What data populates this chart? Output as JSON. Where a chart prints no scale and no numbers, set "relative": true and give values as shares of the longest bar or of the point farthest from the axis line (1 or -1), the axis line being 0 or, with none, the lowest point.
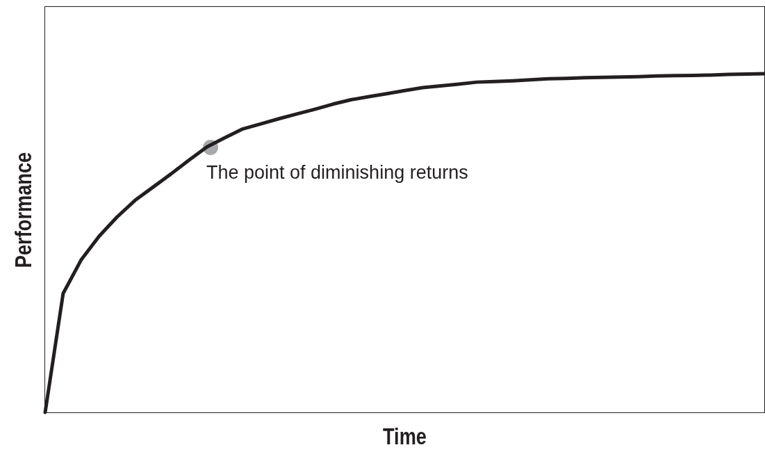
{
  "chart_data": {
    "type": "line",
    "relative": true,
    "xlabel": "Time",
    "ylabel": "Performance",
    "categories": [
      null,
      null,
      null,
      null,
      null,
      null,
      null,
      null,
      null,
      null,
      null,
      null,
      null,
      null,
      null,
      null,
      null,
      null,
      null,
      null,
      null,
      null,
      null,
      null,
      null,
      null,
      null,
      null,
      null,
      null,
      null,
      null,
      null,
      null,
      null,
      null,
      null,
      null,
      null,
      null,
      null
    ],
    "series": [
      {
        "color": "#231f20",
        "values": [
          0,
          0.351,
          0.45,
          0.52,
          0.577,
          0.626,
          0.665,
          0.704,
          0.745,
          0.784,
          0.811,
          0.837,
          0.852,
          0.867,
          0.881,
          0.895,
          0.91,
          0.923,
          0.932,
          0.941,
          0.95,
          0.959,
          0.964,
          0.969,
          0.975,
          0.977,
          0.979,
          0.982,
          0.985,
          0.986,
          0.988,
          0.989,
          0.99,
          0.991,
          0.993,
          0.994,
          0.995,
          0.996,
          0.998,
          0.999,
          1
        ]
      }
    ],
    "annotations": [
      "The point of diminishing returns"
    ]
  }
}
